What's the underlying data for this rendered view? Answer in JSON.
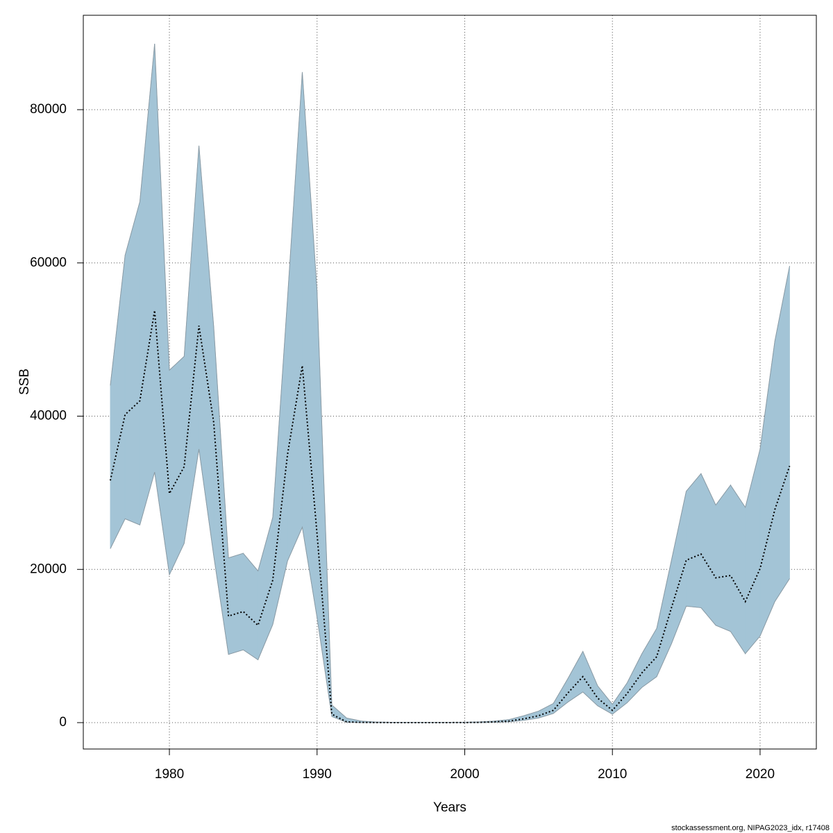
{
  "chart_data": {
    "type": "line-band",
    "xlabel": "Years",
    "ylabel": "SSB",
    "footer": "stockassessment.org, NIPAG2023_idx, r17408",
    "x": [
      1976,
      1977,
      1978,
      1979,
      1980,
      1981,
      1982,
      1983,
      1984,
      1985,
      1986,
      1987,
      1988,
      1989,
      1990,
      1991,
      1992,
      1993,
      1994,
      1995,
      1996,
      1997,
      1998,
      1999,
      2000,
      2001,
      2002,
      2003,
      2004,
      2005,
      2006,
      2007,
      2008,
      2009,
      2010,
      2011,
      2012,
      2013,
      2014,
      2015,
      2016,
      2017,
      2018,
      2019,
      2020,
      2021,
      2022
    ],
    "values": [
      31600,
      40200,
      42000,
      53800,
      29900,
      33400,
      51800,
      39200,
      13900,
      14500,
      12700,
      18600,
      35000,
      46600,
      24600,
      1100,
      100,
      30,
      10,
      5,
      5,
      5,
      5,
      5,
      10,
      30,
      100,
      200,
      500,
      900,
      1600,
      3900,
      6000,
      3200,
      1600,
      3800,
      6500,
      8600,
      15000,
      21200,
      22000,
      18900,
      19200,
      15800,
      20100,
      27800,
      33500
    ],
    "upper": [
      44000,
      61000,
      68000,
      88600,
      46000,
      47800,
      75300,
      51700,
      21500,
      22100,
      19800,
      26800,
      55400,
      84900,
      56300,
      2300,
      600,
      200,
      80,
      40,
      30,
      30,
      30,
      30,
      50,
      100,
      200,
      400,
      900,
      1500,
      2500,
      5800,
      9300,
      4800,
      2400,
      5200,
      9000,
      12300,
      21200,
      30200,
      32500,
      28400,
      31000,
      28100,
      35700,
      49800,
      59600
    ],
    "lower": [
      22700,
      26600,
      25800,
      32700,
      19300,
      23400,
      35700,
      21800,
      8900,
      9500,
      8200,
      12800,
      21100,
      25500,
      13700,
      800,
      50,
      5,
      2,
      1,
      1,
      1,
      1,
      1,
      3,
      10,
      50,
      100,
      300,
      600,
      1200,
      2700,
      4000,
      2200,
      1100,
      2600,
      4600,
      6000,
      10300,
      15200,
      15000,
      12700,
      11900,
      9000,
      11300,
      15800,
      18800
    ],
    "color": "#000000",
    "band_color": "#a3c4d6",
    "band_edge": "#8a9aa4",
    "xlim": [
      1974.17,
      2023.81
    ],
    "ylim": [
      -3443,
      92322
    ],
    "xticks": [
      1980,
      1990,
      2000,
      2010,
      2020
    ],
    "yticks": [
      0,
      20000,
      40000,
      60000,
      80000
    ],
    "grid": true
  }
}
